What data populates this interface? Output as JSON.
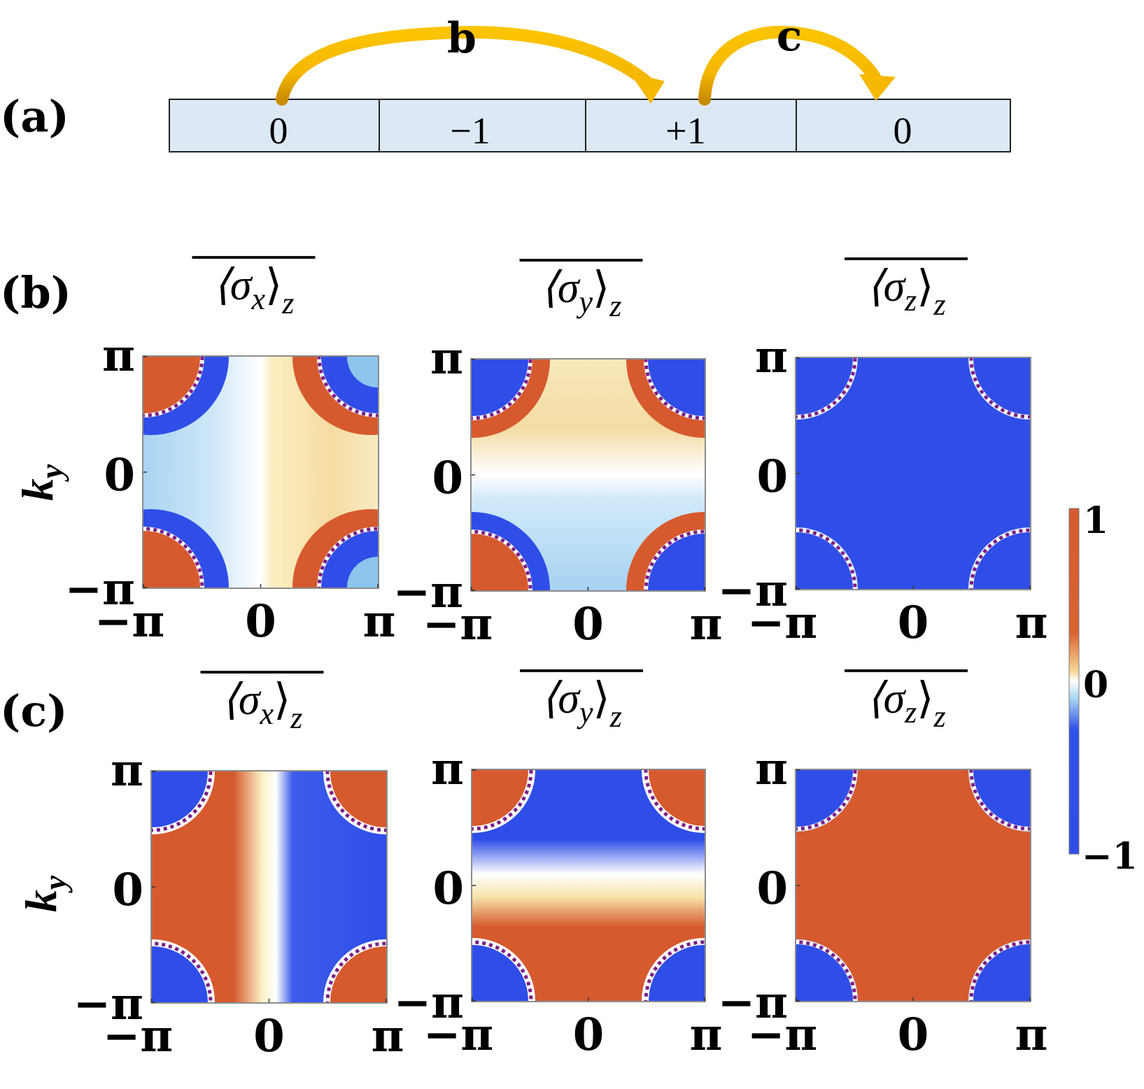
{
  "panel_a": {
    "label": "(a)",
    "cells": [
      "0",
      "−1",
      "+1",
      "0"
    ],
    "arrows": [
      {
        "label": "b",
        "from_cell": 0,
        "to_cell": 2
      },
      {
        "label": "c",
        "from_cell": 2,
        "to_cell": 3
      }
    ],
    "cell_color": "#dce9f5",
    "arrow_color": "#f6b800"
  },
  "rows": [
    {
      "label": "(b)",
      "panels": [
        {
          "title_base": "⟨σ",
          "subscript": "x",
          "title_end": "⟩",
          "outer_sub": "z",
          "pattern": "bx"
        },
        {
          "title_base": "⟨σ",
          "subscript": "y",
          "title_end": "⟩",
          "outer_sub": "z",
          "pattern": "by"
        },
        {
          "title_base": "⟨σ",
          "subscript": "z",
          "title_end": "⟩",
          "outer_sub": "z",
          "pattern": "bz"
        }
      ]
    },
    {
      "label": "(c)",
      "panels": [
        {
          "title_base": "⟨σ",
          "subscript": "x",
          "title_end": "⟩",
          "outer_sub": "z",
          "pattern": "cx"
        },
        {
          "title_base": "⟨σ",
          "subscript": "y",
          "title_end": "⟩",
          "outer_sub": "z",
          "pattern": "cy"
        },
        {
          "title_base": "⟨σ",
          "subscript": "z",
          "title_end": "⟩",
          "outer_sub": "z",
          "pattern": "cz"
        }
      ]
    }
  ],
  "axes": {
    "ylabel": "k",
    "ylabel_sub": "y",
    "x_ticks": [
      "−π",
      "0",
      "π"
    ],
    "y_ticks": [
      "π",
      "0",
      "−π"
    ]
  },
  "colorbar": {
    "ticks": [
      "1",
      "0",
      "−1"
    ],
    "stops": [
      "#d65a2e",
      "#f0c080",
      "#fbf3c8",
      "#ffffff",
      "#bfe1f5",
      "#3050ea"
    ]
  },
  "colors": {
    "red": "#d65a2e",
    "blue": "#2f4ee8",
    "dash": "#7a1f86"
  },
  "chart_data": [
    {
      "type": "heatmap",
      "title": "⟨σx⟩z (b)",
      "ylabel": "ky",
      "xlim": [
        -3.1416,
        3.1416
      ],
      "ylim": [
        -3.1416,
        3.1416
      ],
      "zlim": [
        -1,
        1
      ]
    },
    {
      "type": "heatmap",
      "title": "⟨σy⟩z (b)",
      "ylabel": "ky",
      "xlim": [
        -3.1416,
        3.1416
      ],
      "ylim": [
        -3.1416,
        3.1416
      ],
      "zlim": [
        -1,
        1
      ]
    },
    {
      "type": "heatmap",
      "title": "⟨σz⟩z (b)",
      "ylabel": "ky",
      "xlim": [
        -3.1416,
        3.1416
      ],
      "ylim": [
        -3.1416,
        3.1416
      ],
      "zlim": [
        -1,
        1
      ]
    },
    {
      "type": "heatmap",
      "title": "⟨σx⟩z (c)",
      "ylabel": "ky",
      "xlim": [
        -3.1416,
        3.1416
      ],
      "ylim": [
        -3.1416,
        3.1416
      ],
      "zlim": [
        -1,
        1
      ]
    },
    {
      "type": "heatmap",
      "title": "⟨σy⟩z (c)",
      "ylabel": "ky",
      "xlim": [
        -3.1416,
        3.1416
      ],
      "ylim": [
        -3.1416,
        3.1416
      ],
      "zlim": [
        -1,
        1
      ]
    },
    {
      "type": "heatmap",
      "title": "⟨σz⟩z (c)",
      "ylabel": "ky",
      "xlim": [
        -3.1416,
        3.1416
      ],
      "ylim": [
        -3.1416,
        3.1416
      ],
      "zlim": [
        -1,
        1
      ]
    }
  ]
}
